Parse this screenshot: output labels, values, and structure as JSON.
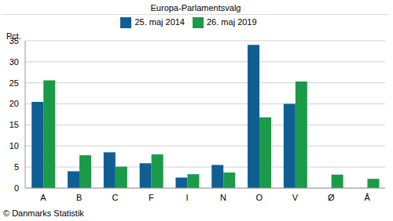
{
  "chart_data": {
    "type": "bar",
    "title": "Europa-Parlamentsvalg",
    "ylabel": "Pct.",
    "source": "© Danmarks Statistik",
    "categories": [
      "A",
      "B",
      "C",
      "F",
      "I",
      "N",
      "O",
      "V",
      "Ø",
      "Å"
    ],
    "series": [
      {
        "name": "25. maj 2014",
        "color": "#0f5f94",
        "values": [
          20.5,
          4.0,
          8.5,
          5.9,
          2.5,
          5.5,
          34.0,
          20.0,
          null,
          null
        ]
      },
      {
        "name": "26. maj 2019",
        "color": "#1b9a47",
        "values": [
          25.6,
          7.8,
          5.1,
          8.0,
          3.3,
          3.7,
          16.8,
          25.3,
          3.2,
          2.2
        ]
      }
    ],
    "ylim": [
      0,
      35
    ],
    "yticks": [
      0,
      5,
      10,
      15,
      20,
      25,
      30,
      35
    ],
    "grid": true,
    "legend": "top"
  }
}
